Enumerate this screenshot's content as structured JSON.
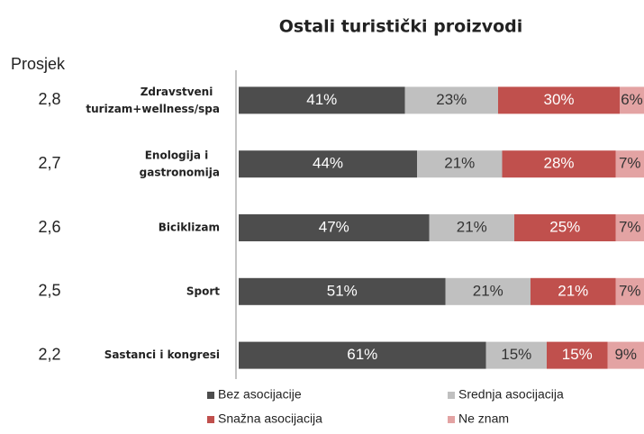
{
  "chart_data": {
    "type": "stacked_barh",
    "title": "Ostali turistički proizvodi",
    "average_title": "Prosjek",
    "averages": [
      {
        "value": 2.8,
        "label": "2,8"
      },
      {
        "value": 2.7,
        "label": "2,7"
      },
      {
        "value": 2.6,
        "label": "2,6"
      },
      {
        "value": 2.5,
        "label": "2,5"
      },
      {
        "value": 2.2,
        "label": "2,2"
      }
    ],
    "categories": [
      "Zdravstveni\nturizam+wellness/spa",
      "Enologija i\ngastronomija",
      "Biciklizam",
      "Sport",
      "Sastanci i kongresi"
    ],
    "xlim": [
      0,
      100
    ],
    "series": [
      {
        "name": "Bez asocijacije",
        "color": "#4d4d4d",
        "label_color": "#ffffff",
        "values": [
          41,
          44,
          47,
          51,
          61
        ],
        "value_labels": [
          "41%",
          "44%",
          "47%",
          "51%",
          "61%"
        ]
      },
      {
        "name": "Srednja asocijacija",
        "color": "#c0c0c0",
        "label_color": "#333333",
        "values": [
          23,
          21,
          21,
          21,
          15
        ],
        "value_labels": [
          "23%",
          "21%",
          "21%",
          "21%",
          "15%"
        ]
      },
      {
        "name": "Snažna asocijacija",
        "color": "#c0504d",
        "label_color": "#ffffff",
        "values": [
          30,
          28,
          25,
          21,
          15
        ],
        "value_labels": [
          "30%",
          "28%",
          "25%",
          "21%",
          "15%"
        ]
      },
      {
        "name": "Ne znam",
        "color": "#e3a3a3",
        "label_color": "#333333",
        "values": [
          6,
          7,
          7,
          7,
          9
        ],
        "value_labels": [
          "6%",
          "7%",
          "7%",
          "7%",
          "9%"
        ]
      }
    ]
  }
}
